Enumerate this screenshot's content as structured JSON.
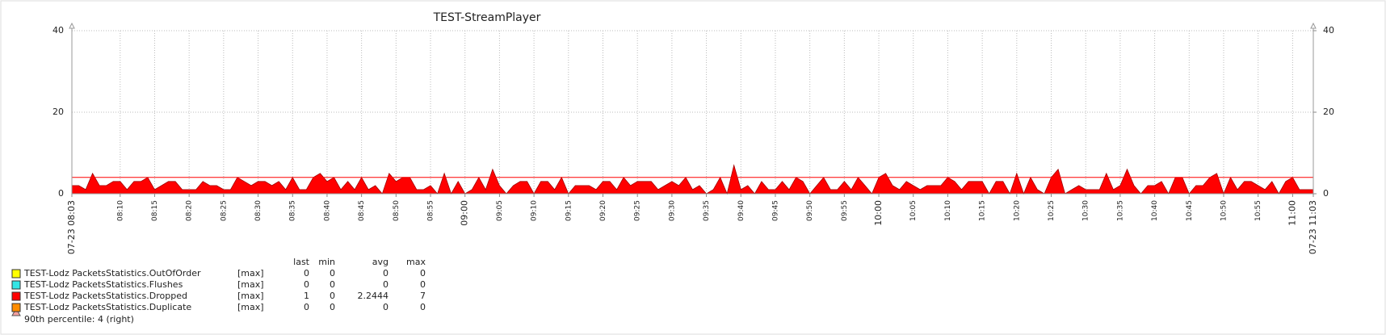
{
  "chart_data": {
    "type": "area",
    "title": "TEST-StreamPlayer",
    "x": [
      "08:03",
      "08:04",
      "08:05",
      "08:06",
      "08:07",
      "08:08",
      "08:09",
      "08:10",
      "08:11",
      "08:12",
      "08:13",
      "08:14",
      "08:15",
      "08:16",
      "08:17",
      "08:18",
      "08:19",
      "08:20",
      "08:21",
      "08:22",
      "08:23",
      "08:24",
      "08:25",
      "08:26",
      "08:27",
      "08:28",
      "08:29",
      "08:30",
      "08:31",
      "08:32",
      "08:33",
      "08:34",
      "08:35",
      "08:36",
      "08:37",
      "08:38",
      "08:39",
      "08:40",
      "08:41",
      "08:42",
      "08:43",
      "08:44",
      "08:45",
      "08:46",
      "08:47",
      "08:48",
      "08:49",
      "08:50",
      "08:51",
      "08:52",
      "08:53",
      "08:54",
      "08:55",
      "08:56",
      "08:57",
      "08:58",
      "08:59",
      "09:00",
      "09:01",
      "09:02",
      "09:03",
      "09:04",
      "09:05",
      "09:06",
      "09:07",
      "09:08",
      "09:09",
      "09:10",
      "09:11",
      "09:12",
      "09:13",
      "09:14",
      "09:15",
      "09:16",
      "09:17",
      "09:18",
      "09:19",
      "09:20",
      "09:21",
      "09:22",
      "09:23",
      "09:24",
      "09:25",
      "09:26",
      "09:27",
      "09:28",
      "09:29",
      "09:30",
      "09:31",
      "09:32",
      "09:33",
      "09:34",
      "09:35",
      "09:36",
      "09:37",
      "09:38",
      "09:39",
      "09:40",
      "09:41",
      "09:42",
      "09:43",
      "09:44",
      "09:45",
      "09:46",
      "09:47",
      "09:48",
      "09:49",
      "09:50",
      "09:51",
      "09:52",
      "09:53",
      "09:54",
      "09:55",
      "09:56",
      "09:57",
      "09:58",
      "09:59",
      "10:00",
      "10:01",
      "10:02",
      "10:03",
      "10:04",
      "10:05",
      "10:06",
      "10:07",
      "10:08",
      "10:09",
      "10:10",
      "10:11",
      "10:12",
      "10:13",
      "10:14",
      "10:15",
      "10:16",
      "10:17",
      "10:18",
      "10:19",
      "10:20",
      "10:21",
      "10:22",
      "10:23",
      "10:24",
      "10:25",
      "10:26",
      "10:27",
      "10:28",
      "10:29",
      "10:30",
      "10:31",
      "10:32",
      "10:33",
      "10:34",
      "10:35",
      "10:36",
      "10:37",
      "10:38",
      "10:39",
      "10:40",
      "10:41",
      "10:42",
      "10:43",
      "10:44",
      "10:45",
      "10:46",
      "10:47",
      "10:48",
      "10:49",
      "10:50",
      "10:51",
      "10:52",
      "10:53",
      "10:54",
      "10:55",
      "10:56",
      "10:57",
      "10:58",
      "10:59",
      "11:00",
      "11:01",
      "11:02",
      "11:03"
    ],
    "xticks": [
      {
        "value": "08:03",
        "label": "07-23 08:03"
      },
      "08:10",
      "08:15",
      "08:20",
      "08:25",
      "08:30",
      "08:35",
      "08:40",
      "08:45",
      "08:50",
      "08:55",
      "09:00",
      "09:05",
      "09:10",
      "09:15",
      "09:20",
      "09:25",
      "09:30",
      "09:35",
      "09:40",
      "09:45",
      "09:50",
      "09:55",
      "10:00",
      "10:05",
      "10:10",
      "10:15",
      "10:20",
      "10:25",
      "10:30",
      "10:35",
      "10:40",
      "10:45",
      "10:50",
      "10:55",
      "11:00",
      {
        "value": "11:03",
        "label": "07-23 11:03"
      }
    ],
    "highlight_color": "#d40000",
    "ylim": [
      0,
      40
    ],
    "yticks": [
      0,
      20,
      40
    ],
    "y2lim": [
      0,
      40
    ],
    "y2ticks": [
      0,
      20,
      40
    ],
    "grid": true,
    "series": [
      {
        "name": "TEST-Lodz PacketsStatistics.OutOfOrder",
        "color": "#ffff00",
        "aggregation": "[max]",
        "stats": {
          "last": 0,
          "min": 0,
          "avg": 0,
          "max": 0
        }
      },
      {
        "name": "TEST-Lodz PacketsStatistics.Flushes",
        "color": "#33e6e6",
        "aggregation": "[max]",
        "stats": {
          "last": 0,
          "min": 0,
          "avg": 0,
          "max": 0
        }
      },
      {
        "name": "TEST-Lodz PacketsStatistics.Dropped",
        "color": "#ff0000",
        "aggregation": "[max]",
        "stats": {
          "last": 1,
          "min": 0,
          "avg": 2.2444,
          "max": 7
        },
        "values": [
          2,
          2,
          1,
          5,
          2,
          2,
          3,
          3,
          1,
          3,
          3,
          4,
          1,
          2,
          3,
          3,
          1,
          1,
          1,
          3,
          2,
          2,
          1,
          1,
          4,
          3,
          2,
          3,
          3,
          2,
          3,
          1,
          4,
          1,
          1,
          4,
          5,
          3,
          4,
          1,
          3,
          1,
          4,
          1,
          2,
          0,
          5,
          3,
          4,
          4,
          1,
          1,
          2,
          0,
          5,
          0,
          3,
          0,
          1,
          4,
          1,
          6,
          2,
          0,
          2,
          3,
          3,
          0,
          3,
          3,
          1,
          4,
          0,
          2,
          2,
          2,
          1,
          3,
          3,
          1,
          4,
          2,
          3,
          3,
          3,
          1,
          2,
          3,
          2,
          4,
          1,
          2,
          0,
          1,
          4,
          0,
          7,
          1,
          2,
          0,
          3,
          1,
          1,
          3,
          1,
          4,
          3,
          0,
          2,
          4,
          1,
          1,
          3,
          1,
          4,
          2,
          0,
          4,
          5,
          2,
          1,
          3,
          2,
          1,
          2,
          2,
          2,
          4,
          3,
          1,
          3,
          3,
          3,
          0,
          3,
          3,
          0,
          5,
          0,
          4,
          1,
          0,
          4,
          6,
          0,
          1,
          2,
          1,
          1,
          1,
          5,
          1,
          2,
          6,
          2,
          0,
          2,
          2,
          3,
          0,
          4,
          4,
          0,
          2,
          2,
          4,
          5,
          0,
          4,
          1,
          3,
          3,
          2,
          1,
          3,
          0,
          3,
          4,
          1,
          1,
          1
        ]
      },
      {
        "name": "TEST-Lodz PacketsStatistics.Duplicate",
        "color": "#ff8c00",
        "aggregation": "[max]",
        "stats": {
          "last": 0,
          "min": 0,
          "avg": 0,
          "max": 0
        }
      }
    ],
    "stat_headers": {
      "last": "last",
      "min": "min",
      "avg": "avg",
      "max": "max"
    },
    "percentile": {
      "value": 4,
      "axis": "y2",
      "color": "#ff0000",
      "label": "90th percentile: 4 (right)"
    }
  }
}
